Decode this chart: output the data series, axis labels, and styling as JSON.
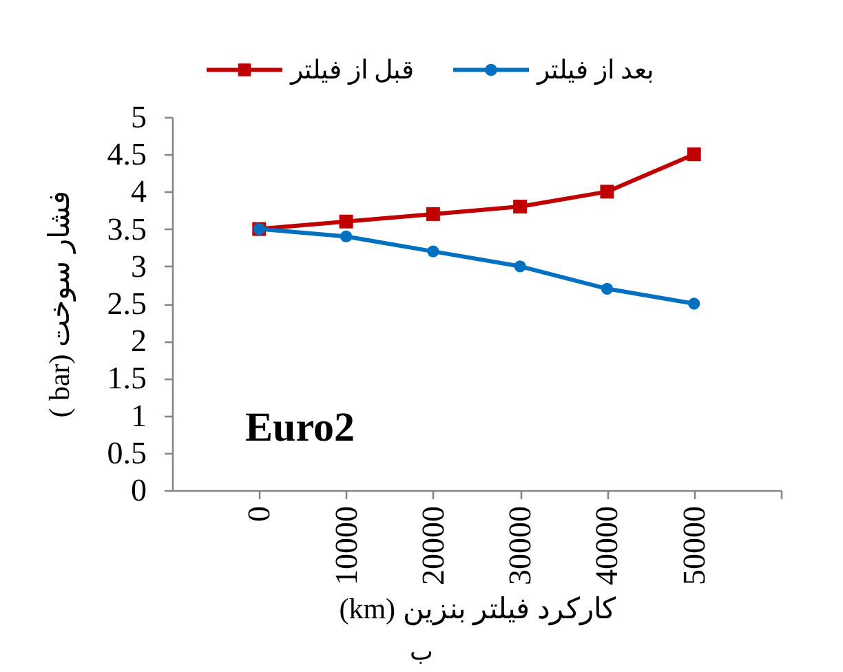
{
  "chart_data": {
    "type": "line",
    "xlabel": "(km) کارکرد فیلتر بنزین",
    "ylabel": "( bar) فشار سوخت",
    "x": [
      0,
      10000,
      20000,
      30000,
      40000,
      50000
    ],
    "xlim": [
      -10000,
      60000
    ],
    "xticks": [
      0,
      10000,
      20000,
      30000,
      40000,
      50000
    ],
    "ylim": [
      0,
      5
    ],
    "yticks": [
      0,
      0.5,
      1,
      1.5,
      2,
      2.5,
      3,
      3.5,
      4,
      4.5,
      5
    ],
    "series": [
      {
        "name": "قبل از فیلتر",
        "color": "#c00000",
        "marker": "square",
        "values": [
          3.5,
          3.6,
          3.7,
          3.8,
          4.0,
          4.5
        ]
      },
      {
        "name": "بعد از فیلتر",
        "color": "#0070c0",
        "marker": "circle",
        "values": [
          3.5,
          3.4,
          3.2,
          3.0,
          2.7,
          2.5
        ]
      }
    ],
    "annotations": [
      "Euro2",
      "ب"
    ],
    "legend": "top",
    "grid": false,
    "line_style": "solid"
  }
}
